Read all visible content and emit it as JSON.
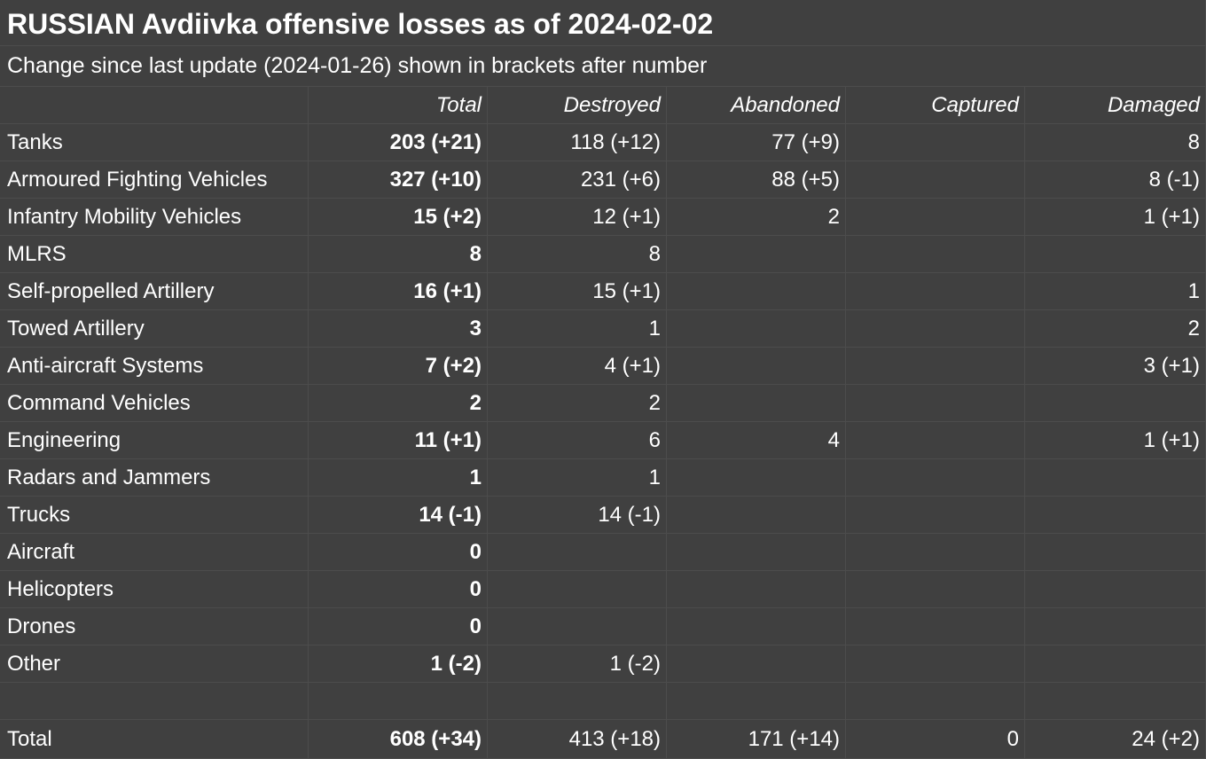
{
  "title": "RUSSIAN Avdiivka offensive losses as of 2024-02-02",
  "subtitle": "Change since last update (2024-01-26) shown in brackets after number",
  "headers": [
    "",
    "Total",
    "Destroyed",
    "Abandoned",
    "Captured",
    "Damaged"
  ],
  "rows": [
    {
      "category": "Tanks",
      "total": "203 (+21)",
      "destroyed": "118 (+12)",
      "abandoned": "77 (+9)",
      "captured": "",
      "damaged": "8"
    },
    {
      "category": "Armoured Fighting Vehicles",
      "total": "327 (+10)",
      "destroyed": "231 (+6)",
      "abandoned": "88 (+5)",
      "captured": "",
      "damaged": "8 (-1)"
    },
    {
      "category": "Infantry Mobility Vehicles",
      "total": "15 (+2)",
      "destroyed": "12 (+1)",
      "abandoned": "2",
      "captured": "",
      "damaged": "1 (+1)"
    },
    {
      "category": "MLRS",
      "total": "8",
      "destroyed": "8",
      "abandoned": "",
      "captured": "",
      "damaged": ""
    },
    {
      "category": "Self-propelled Artillery",
      "total": "16 (+1)",
      "destroyed": "15 (+1)",
      "abandoned": "",
      "captured": "",
      "damaged": "1"
    },
    {
      "category": "Towed Artillery",
      "total": "3",
      "destroyed": "1",
      "abandoned": "",
      "captured": "",
      "damaged": "2"
    },
    {
      "category": "Anti-aircraft Systems",
      "total": "7 (+2)",
      "destroyed": "4 (+1)",
      "abandoned": "",
      "captured": "",
      "damaged": "3 (+1)"
    },
    {
      "category": "Command Vehicles",
      "total": "2",
      "destroyed": "2",
      "abandoned": "",
      "captured": "",
      "damaged": ""
    },
    {
      "category": "Engineering",
      "total": "11 (+1)",
      "destroyed": "6",
      "abandoned": "4",
      "captured": "",
      "damaged": "1 (+1)"
    },
    {
      "category": "Radars and Jammers",
      "total": "1",
      "destroyed": "1",
      "abandoned": "",
      "captured": "",
      "damaged": ""
    },
    {
      "category": "Trucks",
      "total": "14 (-1)",
      "destroyed": "14 (-1)",
      "abandoned": "",
      "captured": "",
      "damaged": ""
    },
    {
      "category": "Aircraft",
      "total": "0",
      "destroyed": "",
      "abandoned": "",
      "captured": "",
      "damaged": ""
    },
    {
      "category": "Helicopters",
      "total": "0",
      "destroyed": "",
      "abandoned": "",
      "captured": "",
      "damaged": ""
    },
    {
      "category": "Drones",
      "total": "0",
      "destroyed": "",
      "abandoned": "",
      "captured": "",
      "damaged": ""
    },
    {
      "category": "Other",
      "total": "1 (-2)",
      "destroyed": "1 (-2)",
      "abandoned": "",
      "captured": "",
      "damaged": ""
    }
  ],
  "total_row": {
    "category": "Total",
    "total": "608 (+34)",
    "destroyed": "413 (+18)",
    "abandoned": "171 (+14)",
    "captured": "0",
    "damaged": "24 (+2)"
  }
}
